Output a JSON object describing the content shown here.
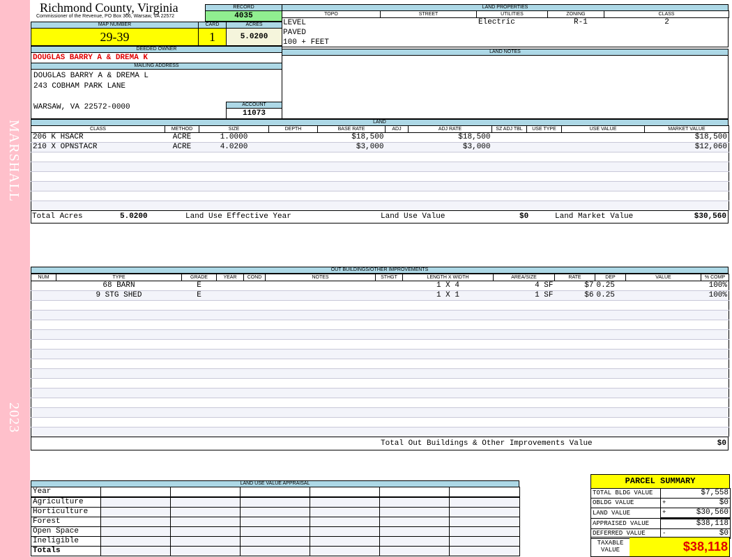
{
  "sidebar": {
    "district": "MARSHALL",
    "year": "2023",
    "color": "#ffc0cb"
  },
  "header": {
    "title": "Richmond County, Virginia",
    "subtitle": "Commissioner of the Revenue, PO Box 366, Warsaw, VA 22572"
  },
  "record": {
    "label": "RECORD",
    "value": "4035"
  },
  "map": {
    "map_label": "MAP NUMBER",
    "map_value": "29-39",
    "card_label": "CARD",
    "card_value": "1",
    "acres_label": "ACRES",
    "acres_value": "5.0200"
  },
  "owner": {
    "label": "DEEDED OWNER",
    "value": "DOUGLAS BARRY A & DREMA K"
  },
  "mailing": {
    "label": "MAILING ADDRESS",
    "lines": [
      "DOUGLAS BARRY A & DREMA L",
      "243 COBHAM PARK LANE",
      "",
      "WARSAW, VA 22572-0000"
    ]
  },
  "account": {
    "label": "ACCOUNT",
    "value": "11073"
  },
  "land_properties": {
    "label": "LAND PROPERTIES",
    "columns": [
      "TOPO",
      "STREET",
      "UTILITIES",
      "ZONING",
      "CLASS"
    ],
    "topo": [
      "LEVEL",
      "PAVED",
      "100 + FEET"
    ],
    "street": "",
    "utilities": "Electric",
    "zoning": "R-1",
    "class": "2"
  },
  "land_notes": {
    "label": "LAND NOTES",
    "value": ""
  },
  "land": {
    "label": "LAND",
    "columns": [
      "CLASS",
      "METHOD",
      "SIZE",
      "DEPTH",
      "BASE RATE",
      "ADJ",
      "ADJ RATE",
      "SZ ADJ TBL",
      "USE TYPE",
      "USE VALUE",
      "MARKET VALUE"
    ],
    "rows": [
      [
        "206 K HSACR",
        "ACRE",
        "1.0000",
        "",
        "$18,500",
        "",
        "$18,500",
        "",
        "",
        "",
        "$18,500"
      ],
      [
        "210 X OPNSTACR",
        "ACRE",
        "4.0200",
        "",
        "$3,000",
        "",
        "$3,000",
        "",
        "",
        "",
        "$12,060"
      ]
    ],
    "totals": {
      "acres_label": "Total Acres",
      "acres": "5.0200",
      "effective_year_label": "Land Use Effective Year",
      "effective_year": "",
      "use_value_label": "Land Use Value",
      "use_value": "$0",
      "market_value_label": "Land Market Value",
      "market_value": "$30,560"
    }
  },
  "outbuildings": {
    "label": "OUT BUILDINGS/OTHER IMPROVEMENTS",
    "columns": [
      "NUM",
      "TYPE",
      "GRADE",
      "YEAR",
      "COND",
      "NOTES",
      "STHGT",
      "LENGTH X WIDTH",
      "AREA/SIZE",
      "RATE",
      "DEP",
      "VALUE",
      "% COMP"
    ],
    "rows": [
      [
        "",
        "68 BARN",
        "E",
        "",
        "",
        "",
        "",
        "1 X 4",
        "4 SF",
        "$7",
        "0.25",
        "",
        "100%"
      ],
      [
        "",
        "9 STG SHED",
        "E",
        "",
        "",
        "",
        "",
        "1 X 1",
        "1 SF",
        "$6",
        "0.25",
        "",
        "100%"
      ]
    ],
    "total_label": "Total Out Buildings & Other Improvements Value",
    "total_value": "$0"
  },
  "land_use_appraisal": {
    "label": "LAND USE VALUE APPRAISAL",
    "year_label": "Year",
    "rows": [
      "Agriculture",
      "Horticulture",
      "Forest",
      "Open Space",
      "Ineligible",
      "Totals"
    ]
  },
  "parcel_summary": {
    "title": "PARCEL SUMMARY",
    "rows": [
      {
        "label": "TOTAL BLDG VALUE",
        "sign": "",
        "value": "$7,558"
      },
      {
        "label": "OBLDG VALUE",
        "sign": "+",
        "value": "$0"
      },
      {
        "label": "LAND VALUE",
        "sign": "+",
        "value": "$30,560"
      },
      {
        "label": "APPRAISED VALUE",
        "sign": "",
        "value": "$38,118"
      },
      {
        "label": "DEFERRED VALUE",
        "sign": "-",
        "value": "$0"
      }
    ],
    "taxable_label": "TAXABLE VALUE",
    "taxable_value": "$38,118"
  }
}
